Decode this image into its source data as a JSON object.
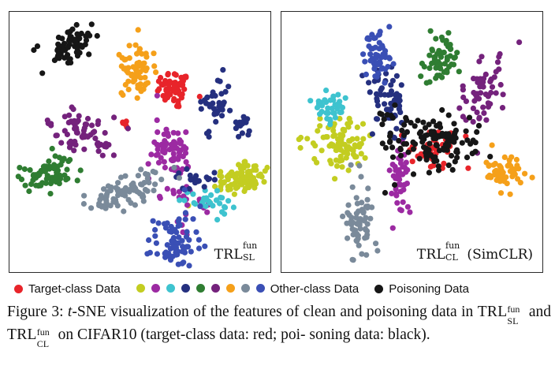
{
  "chart_data": [
    {
      "type": "scatter",
      "label": {
        "name": "TRL",
        "sup": "fun",
        "sub": "SL",
        "suffix": ""
      },
      "grid": false,
      "series": [
        {
          "name": "Target-class Data",
          "color": "#e8242a",
          "clusters": [
            {
              "x": 0.63,
              "y": 0.29,
              "sx": 0.035,
              "sy": 0.035,
              "n": 55,
              "a": 0.6
            },
            {
              "x": 0.44,
              "y": 0.43,
              "sx": 0.012,
              "sy": 0.012,
              "n": 6,
              "a": 0
            }
          ]
        },
        {
          "name": "Other-class Data",
          "color": "#c3cd21",
          "clusters": [
            {
              "x": 0.88,
              "y": 0.64,
              "sx": 0.055,
              "sy": 0.032,
              "n": 85,
              "a": -0.4
            }
          ]
        },
        {
          "name": "Other-class Data",
          "color": "#9c2aa2",
          "clusters": [
            {
              "x": 0.62,
              "y": 0.53,
              "sx": 0.037,
              "sy": 0.05,
              "n": 70,
              "a": 0
            },
            {
              "x": 0.66,
              "y": 0.72,
              "sx": 0.06,
              "sy": 0.05,
              "n": 25,
              "a": 0.3
            }
          ]
        },
        {
          "name": "Other-class Data",
          "color": "#3ec3cf",
          "clusters": [
            {
              "x": 0.75,
              "y": 0.72,
              "sx": 0.045,
              "sy": 0.025,
              "n": 30,
              "a": 0.3
            }
          ]
        },
        {
          "name": "Other-class Data",
          "color": "#25307f",
          "clusters": [
            {
              "x": 0.79,
              "y": 0.36,
              "sx": 0.025,
              "sy": 0.06,
              "n": 35,
              "a": 0.3
            },
            {
              "x": 0.89,
              "y": 0.44,
              "sx": 0.02,
              "sy": 0.025,
              "n": 15,
              "a": 0
            },
            {
              "x": 0.72,
              "y": 0.64,
              "sx": 0.04,
              "sy": 0.02,
              "n": 20,
              "a": 0
            }
          ]
        },
        {
          "name": "Other-class Data",
          "color": "#2f7d32",
          "clusters": [
            {
              "x": 0.14,
              "y": 0.62,
              "sx": 0.055,
              "sy": 0.03,
              "n": 65,
              "a": -0.3
            }
          ]
        },
        {
          "name": "Other-class Data",
          "color": "#74227c",
          "clusters": [
            {
              "x": 0.28,
              "y": 0.46,
              "sx": 0.06,
              "sy": 0.035,
              "n": 70,
              "a": 0.15
            }
          ]
        },
        {
          "name": "Other-class Data",
          "color": "#f5a01a",
          "clusters": [
            {
              "x": 0.49,
              "y": 0.22,
              "sx": 0.035,
              "sy": 0.055,
              "n": 65,
              "a": 0
            }
          ]
        },
        {
          "name": "Other-class Data",
          "color": "#7a8a9a",
          "clusters": [
            {
              "x": 0.44,
              "y": 0.69,
              "sx": 0.07,
              "sy": 0.03,
              "n": 80,
              "a": -0.45
            }
          ]
        },
        {
          "name": "Other-class Data",
          "color": "#3a4fb5",
          "clusters": [
            {
              "x": 0.63,
              "y": 0.87,
              "sx": 0.04,
              "sy": 0.05,
              "n": 70,
              "a": 0.3
            }
          ]
        },
        {
          "name": "Poisoning Data",
          "color": "#161616",
          "clusters": [
            {
              "x": 0.23,
              "y": 0.13,
              "sx": 0.06,
              "sy": 0.03,
              "n": 70,
              "a": -0.55
            }
          ]
        }
      ]
    },
    {
      "type": "scatter",
      "label": {
        "name": "TRL",
        "sup": "fun",
        "sub": "CL",
        "suffix": " (SimCLR)"
      },
      "grid": false,
      "series": [
        {
          "name": "Target-class Data",
          "color": "#e8242a",
          "clusters": [
            {
              "x": 0.58,
              "y": 0.52,
              "sx": 0.06,
              "sy": 0.04,
              "n": 45,
              "a": 0
            }
          ]
        },
        {
          "name": "Other-class Data",
          "color": "#c3cd21",
          "clusters": [
            {
              "x": 0.22,
              "y": 0.5,
              "sx": 0.065,
              "sy": 0.045,
              "n": 85,
              "a": 0
            }
          ]
        },
        {
          "name": "Other-class Data",
          "color": "#9c2aa2",
          "clusters": [
            {
              "x": 0.45,
              "y": 0.64,
              "sx": 0.02,
              "sy": 0.06,
              "n": 45,
              "a": 0
            }
          ]
        },
        {
          "name": "Other-class Data",
          "color": "#3ec3cf",
          "clusters": [
            {
              "x": 0.19,
              "y": 0.36,
              "sx": 0.035,
              "sy": 0.03,
              "n": 40,
              "a": 0
            }
          ]
        },
        {
          "name": "Other-class Data",
          "color": "#25307f",
          "clusters": [
            {
              "x": 0.42,
              "y": 0.36,
              "sx": 0.035,
              "sy": 0.06,
              "n": 45,
              "a": 0
            },
            {
              "x": 0.36,
              "y": 0.28,
              "sx": 0.02,
              "sy": 0.04,
              "n": 15,
              "a": 0
            }
          ]
        },
        {
          "name": "Other-class Data",
          "color": "#2f7d32",
          "clusters": [
            {
              "x": 0.6,
              "y": 0.18,
              "sx": 0.035,
              "sy": 0.05,
              "n": 55,
              "a": 0.5
            }
          ]
        },
        {
          "name": "Other-class Data",
          "color": "#74227c",
          "clusters": [
            {
              "x": 0.77,
              "y": 0.31,
              "sx": 0.035,
              "sy": 0.065,
              "n": 60,
              "a": 0.2
            }
          ]
        },
        {
          "name": "Other-class Data",
          "color": "#f5a01a",
          "clusters": [
            {
              "x": 0.85,
              "y": 0.61,
              "sx": 0.04,
              "sy": 0.035,
              "n": 55,
              "a": 0
            }
          ]
        },
        {
          "name": "Other-class Data",
          "color": "#7a8a9a",
          "clusters": [
            {
              "x": 0.3,
              "y": 0.8,
              "sx": 0.025,
              "sy": 0.075,
              "n": 65,
              "a": 0
            }
          ]
        },
        {
          "name": "Other-class Data",
          "color": "#3a4fb5",
          "clusters": [
            {
              "x": 0.37,
              "y": 0.16,
              "sx": 0.025,
              "sy": 0.05,
              "n": 55,
              "a": 0
            }
          ]
        },
        {
          "name": "Poisoning Data",
          "color": "#161616",
          "clusters": [
            {
              "x": 0.6,
              "y": 0.5,
              "sx": 0.085,
              "sy": 0.05,
              "n": 110,
              "a": 0
            },
            {
              "x": 0.43,
              "y": 0.5,
              "sx": 0.04,
              "sy": 0.08,
              "n": 20,
              "a": 0
            }
          ]
        }
      ]
    }
  ],
  "legend": {
    "target": {
      "label": "Target-class Data",
      "color": "#e8242a"
    },
    "other": {
      "label": "Other-class Data",
      "colors": [
        "#c3cd21",
        "#9c2aa2",
        "#3ec3cf",
        "#25307f",
        "#2f7d32",
        "#74227c",
        "#f5a01a",
        "#7a8a9a",
        "#3a4fb5"
      ]
    },
    "poison": {
      "label": "Poisoning Data",
      "color": "#161616"
    }
  },
  "caption": {
    "part1": "Figure 3: ",
    "italic": "t",
    "part2": "-SNE visualization of the features of clean and poisoning data in ",
    "trl": "TRL",
    "sup": "fun",
    "sub1": "SL",
    "part3": " and ",
    "sub2": "CL",
    "part4": " on CIFAR10 (target-class data: red; poi- soning data: black)."
  }
}
